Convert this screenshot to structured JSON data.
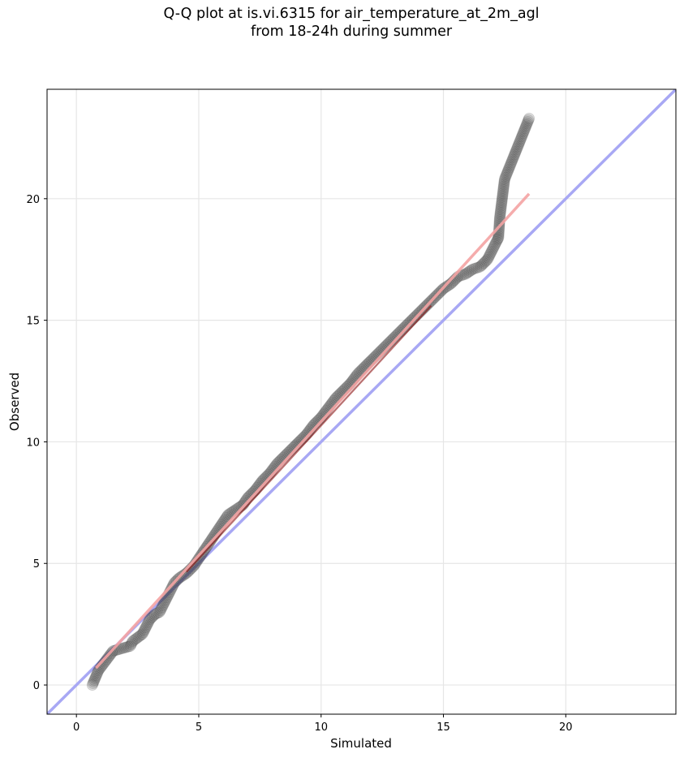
{
  "title": {
    "line1": "Q-Q plot at is.vi.6315 for air_temperature_at_2m_agl",
    "line2": "from 18-24h during summer"
  },
  "chart_data": {
    "type": "scatter",
    "title": "Q-Q plot at is.vi.6315 for air_temperature_at_2m_agl\nfrom 18-24h during summer",
    "xlabel": "Simulated",
    "ylabel": "Observed",
    "xlim": [
      -1.2,
      24.5
    ],
    "ylim": [
      -1.2,
      24.5
    ],
    "xticks": [
      0,
      5,
      10,
      15,
      20
    ],
    "yticks": [
      0,
      5,
      10,
      15,
      20
    ],
    "xtick_labels": [
      "0",
      "5",
      "10",
      "15",
      "20"
    ],
    "ytick_labels": [
      "0",
      "5",
      "10",
      "15",
      "20"
    ],
    "grid": true,
    "series": [
      {
        "kind": "quantile-points",
        "color": "#3c3c3c",
        "x": [
          0.65,
          0.9,
          1.2,
          1.5,
          2.2,
          2.3,
          2.7,
          2.9,
          3.0,
          3.2,
          3.4,
          3.5,
          3.6,
          3.7,
          3.8,
          3.9,
          4.0,
          4.2,
          4.5,
          4.8,
          5.0,
          5.2,
          5.4,
          5.6,
          5.8,
          6.0,
          6.2,
          6.5,
          6.8,
          7.0,
          7.3,
          7.6,
          7.9,
          8.2,
          8.5,
          8.8,
          9.1,
          9.4,
          9.7,
          10.0,
          10.3,
          10.6,
          10.9,
          11.2,
          11.5,
          11.8,
          12.1,
          12.4,
          12.7,
          13.0,
          13.3,
          13.6,
          13.9,
          14.2,
          14.5,
          14.8,
          15.0,
          15.3,
          15.6,
          15.9,
          16.2,
          16.5,
          16.8,
          17.0,
          17.2,
          17.25,
          17.3,
          17.5,
          18.5
        ],
        "y": [
          0.0,
          0.6,
          1.0,
          1.4,
          1.6,
          1.8,
          2.1,
          2.5,
          2.7,
          2.9,
          3.0,
          3.2,
          3.4,
          3.6,
          3.8,
          4.0,
          4.2,
          4.4,
          4.6,
          4.9,
          5.2,
          5.5,
          5.8,
          6.1,
          6.4,
          6.7,
          7.0,
          7.2,
          7.4,
          7.7,
          8.0,
          8.4,
          8.7,
          9.1,
          9.4,
          9.7,
          10.0,
          10.3,
          10.7,
          11.0,
          11.4,
          11.8,
          12.1,
          12.4,
          12.8,
          13.1,
          13.4,
          13.7,
          14.0,
          14.3,
          14.6,
          14.9,
          15.2,
          15.5,
          15.8,
          16.1,
          16.3,
          16.5,
          16.8,
          16.9,
          17.1,
          17.2,
          17.5,
          17.9,
          18.3,
          18.4,
          19.2,
          20.8,
          23.3
        ]
      },
      {
        "kind": "fit-line",
        "color": "#f4a3a3",
        "x": [
          0.8,
          18.5
        ],
        "y": [
          0.7,
          20.2
        ]
      },
      {
        "kind": "identity-line",
        "color": "#a8a8f4",
        "x": [
          -1.2,
          24.5
        ],
        "y": [
          -1.2,
          24.5
        ]
      }
    ]
  }
}
